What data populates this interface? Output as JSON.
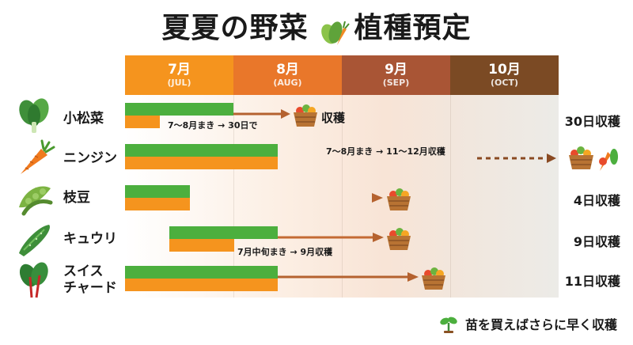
{
  "title": "夏夏の野菜",
  "title_suffix": "植種預定",
  "months": [
    {
      "name": "7月",
      "sub": "(JUL)",
      "color": "#f5941e"
    },
    {
      "name": "8月",
      "sub": "(AUG)",
      "color": "#e9772a"
    },
    {
      "name": "9月",
      "sub": "(SEP)",
      "color": "#a95535"
    },
    {
      "name": "10月",
      "sub": "(OCT)",
      "color": "#7b4a24"
    }
  ],
  "rows": [
    {
      "name": "小松菜",
      "note": "7～8月まき → 30日で",
      "harvest_text": "収穫",
      "right_label": "30日収穫"
    },
    {
      "name": "ニンジン",
      "note": "7～8月まき → 11～12月収穫",
      "right_label": ""
    },
    {
      "name": "枝豆",
      "right_label": "4日収穫"
    },
    {
      "name": "キュウリ",
      "note": "7月中旬まき → 9月収穫",
      "right_label": "9日収穫"
    },
    {
      "name": "スイス\nチャード",
      "name_line1": "スイス",
      "name_line2": "チャード",
      "right_label": "11日収穫"
    }
  ],
  "footer": {
    "text": "苗を買えばさらに早く収穫",
    "icon": "sprout-icon"
  },
  "colors": {
    "green": "#4caf3e",
    "orange": "#f5941e",
    "arrow": "#b5622f"
  }
}
